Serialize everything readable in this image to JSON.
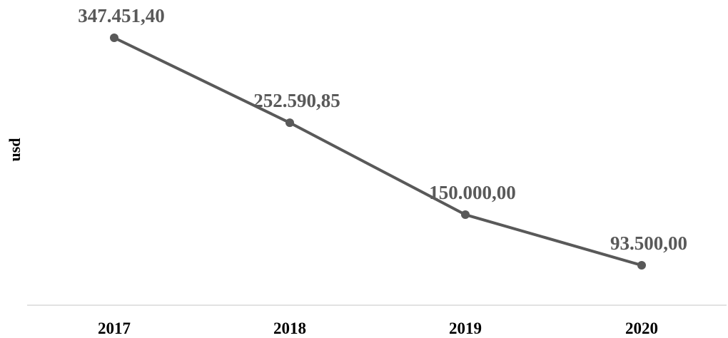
{
  "chart_data": {
    "type": "line",
    "title": "",
    "xlabel": "",
    "ylabel": "usd",
    "categories": [
      "2017",
      "2018",
      "2019",
      "2020"
    ],
    "series": [
      {
        "values": [
          347451.4,
          252590.85,
          150000.0,
          93500.0
        ],
        "labels": [
          "347.451,40",
          "252.590,85",
          "150.000,00",
          "93.500,00"
        ],
        "color": "#595959"
      }
    ],
    "grid": false,
    "legend": "none"
  }
}
